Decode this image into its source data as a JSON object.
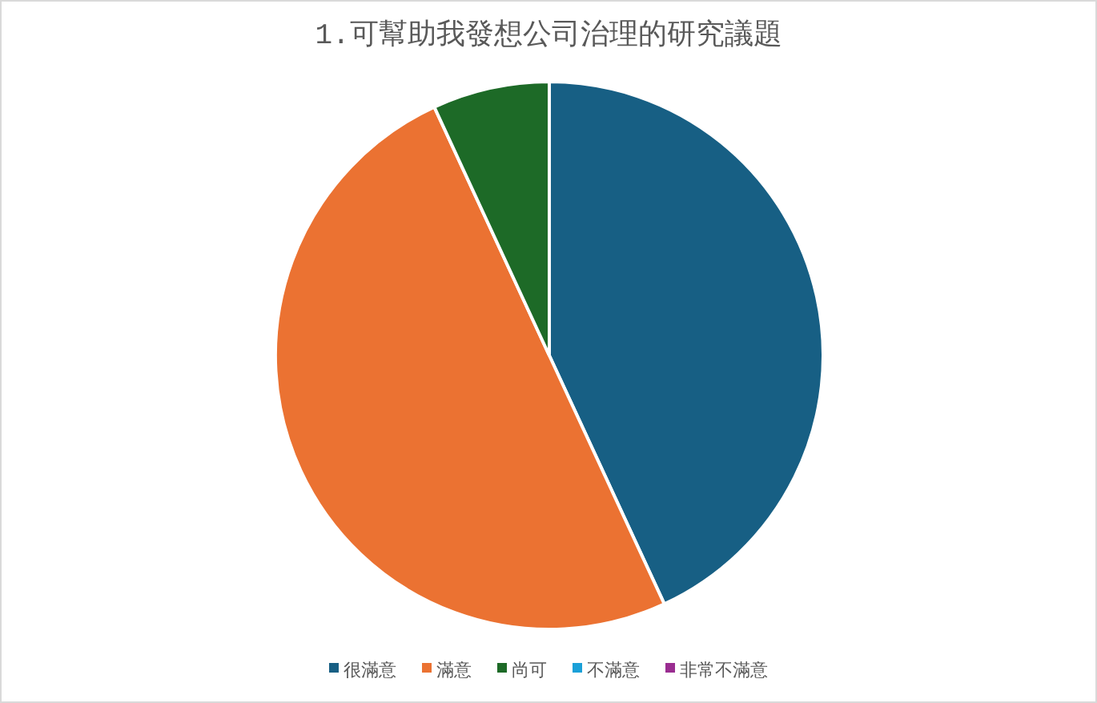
{
  "chart_data": {
    "type": "pie",
    "title": "1.可幫助我發想公司治理的研究議題",
    "categories": [
      "很滿意",
      "滿意",
      "尚可",
      "不滿意",
      "非常不滿意"
    ],
    "values": [
      43.1,
      50,
      6.9,
      0,
      0
    ],
    "colors": [
      "#175f84",
      "#eb7232",
      "#1d6a27",
      "#1aa0d8",
      "#9a2d91"
    ],
    "legend": "bottom"
  }
}
